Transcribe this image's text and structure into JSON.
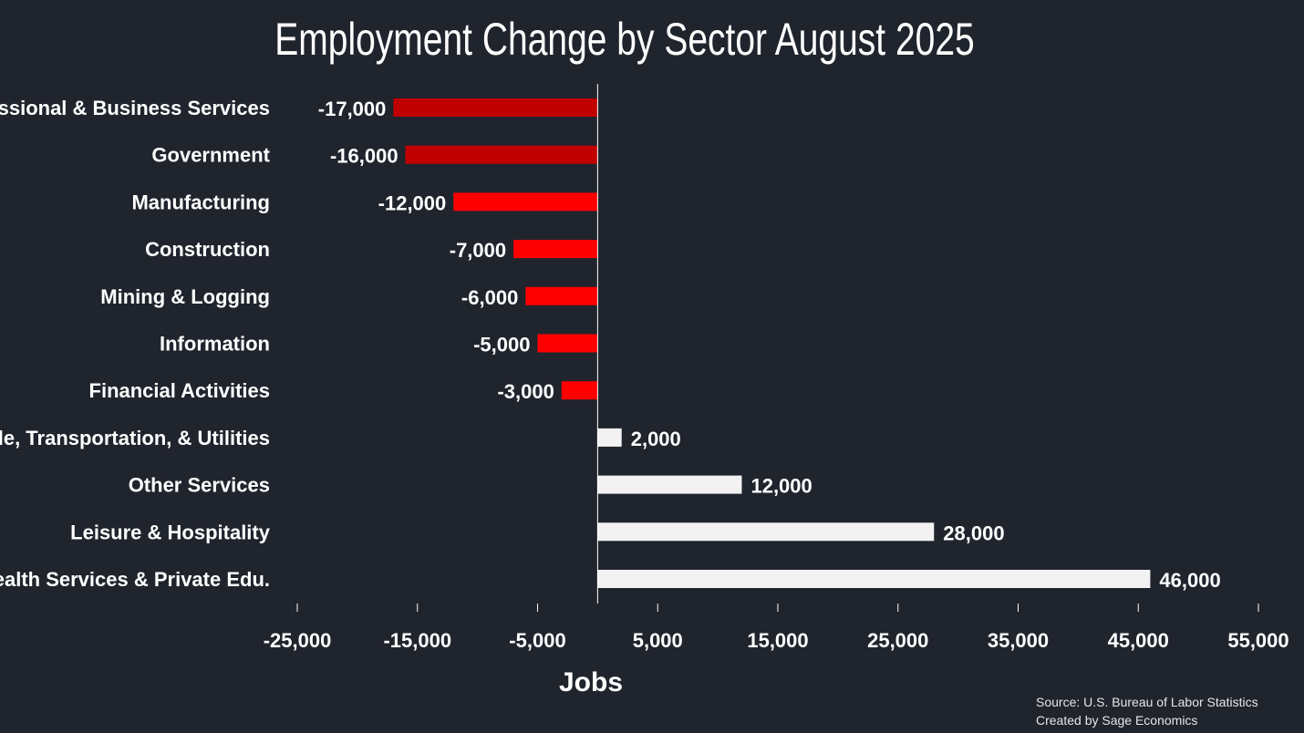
{
  "chart_data": {
    "type": "bar",
    "orientation": "horizontal",
    "title": "Employment Change by Sector August 2025",
    "xlabel": "Jobs",
    "ylabel": "",
    "xlim": [
      -25000,
      55000
    ],
    "xticks": [
      -25000,
      -15000,
      -5000,
      5000,
      15000,
      25000,
      35000,
      45000,
      55000
    ],
    "xtick_labels": [
      "-25,000",
      "-15,000",
      "-5,000",
      "5,000",
      "15,000",
      "25,000",
      "35,000",
      "45,000",
      "55,000"
    ],
    "categories": [
      "Professional & Business Services",
      "Government",
      "Manufacturing",
      "Construction",
      "Mining & Logging",
      "Information",
      "Financial Activities",
      "Trade, Transportation, & Utilities",
      "Other Services",
      "Leisure & Hospitality",
      "Health Services & Private Edu."
    ],
    "values": [
      -17000,
      -16000,
      -12000,
      -7000,
      -6000,
      -5000,
      -3000,
      2000,
      12000,
      28000,
      46000
    ],
    "value_labels": [
      "-17,000",
      "-16,000",
      "-12,000",
      "-7,000",
      "-6,000",
      "-5,000",
      "-3,000",
      "2,000",
      "12,000",
      "28,000",
      "46,000"
    ],
    "bar_colors": [
      "#c00000",
      "#c00000",
      "#ff0000",
      "#ff0000",
      "#ff0000",
      "#ff0000",
      "#ff0000",
      "#f2f2f2",
      "#f2f2f2",
      "#f2f2f2",
      "#f2f2f2"
    ],
    "grid": false,
    "legend": "none"
  },
  "colors": {
    "background": "#20242d",
    "text": "#ffffff",
    "axis": "#ffffff"
  },
  "source": {
    "line1": "Source: U.S. Bureau of Labor Statistics",
    "line2": "Created by Sage Economics"
  }
}
